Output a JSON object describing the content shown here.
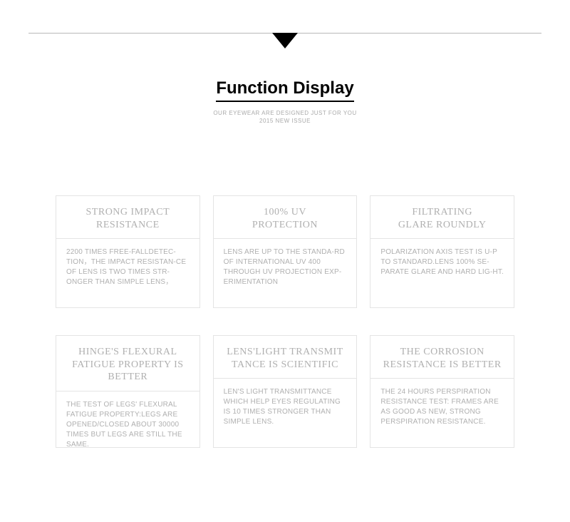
{
  "header": {
    "title": "Function Display",
    "subtitle_line1": "OUR EYEWEAR ARE DESIGNED JUST FOR YOU",
    "subtitle_line2": "2015 NEW ISSUE"
  },
  "cards": [
    {
      "title": "STRONG IMPACT\nRESISTANCE",
      "body": "2200 TIMES FREE-FALLDETEC-TION，THE IMPACT RESISTAN-CE OF LENS IS TWO TIMES STR-ONGER THAN SIMPLE LENS，"
    },
    {
      "title": "100% UV\nPROTECTION",
      "body": "LENS ARE UP TO THE STANDA-RD OF INTERNATIONAL UV 400 THROUGH UV PROJECTION EXP-ERIMENTATION"
    },
    {
      "title": "FILTRATING\nGLARE ROUNDLY",
      "body": "POLARIZATION AXIS TEST IS U-P TO STANDARD.LENS 100% SE-PARATE GLARE AND HARD LIG-HT."
    },
    {
      "title": "HINGE'S FLEXURAL\nFATIGUE PROPERTY IS\nBETTER",
      "body": "THE TEST OF LEGS' FLEXURAL FATIGUE PROPERTY:LEGS ARE OPENED/CLOSED ABOUT 30000 TIMES BUT LEGS ARE STILL THE SAME."
    },
    {
      "title": "LENS'LIGHT TRANSMIT\nTANCE IS SCIENTIFIC",
      "body": "LEN'S LIGHT TRANSMITTANCE WHICH HELP EYES REGULATING IS 10 TIMES STRONGER THAN SIMPLE LENS."
    },
    {
      "title": "THE CORROSION\nRESISTANCE IS BETTER",
      "body": "THE 24 HOURS PERSPIRATION RESISTANCE TEST: FRAMES ARE AS GOOD AS NEW, STRONG PERSPIRATION RESISTANCE."
    }
  ]
}
